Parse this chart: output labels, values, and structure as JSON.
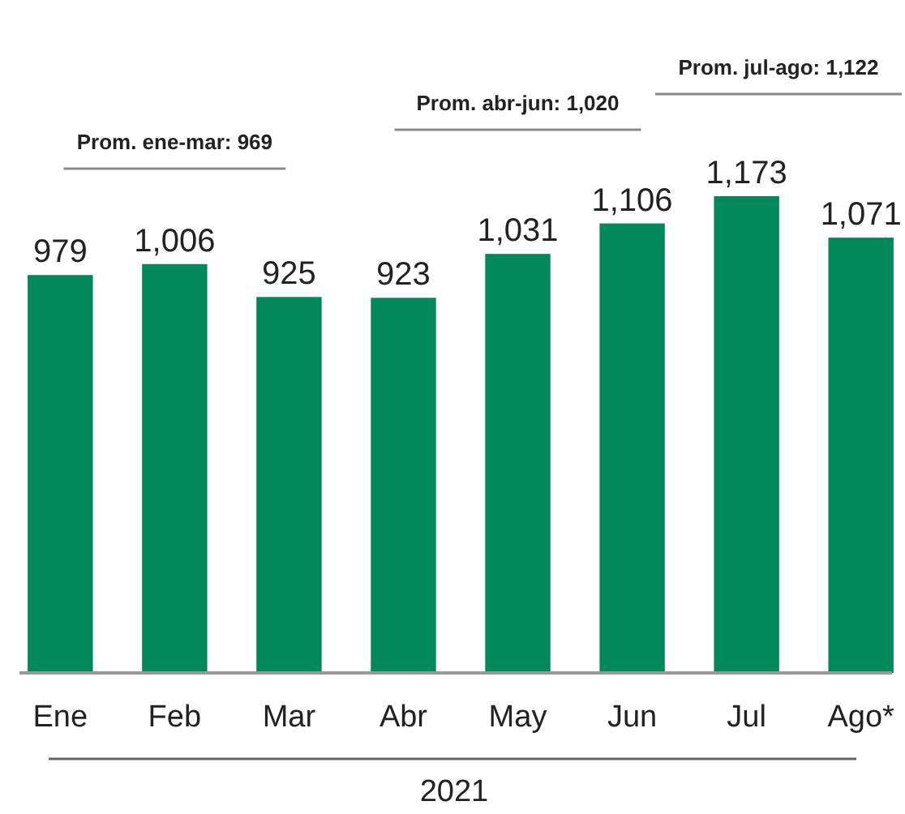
{
  "chart_data": {
    "type": "bar",
    "categories": [
      "Ene",
      "Feb",
      "Mar",
      "Abr",
      "May",
      "Jun",
      "Jul",
      "Ago*"
    ],
    "values": [
      979,
      1006,
      925,
      923,
      1031,
      1106,
      1173,
      1071
    ],
    "color": "#00875a",
    "value_labels": [
      "979",
      "1,006",
      "925",
      "923",
      "1,031",
      "1,106",
      "1,173",
      "1,071"
    ],
    "xlabel": "2021",
    "annotations": [
      "Prom. ene-mar: 969",
      "Prom. abr-jun: 1,020",
      "Prom. jul-ago: 1,122"
    ]
  }
}
